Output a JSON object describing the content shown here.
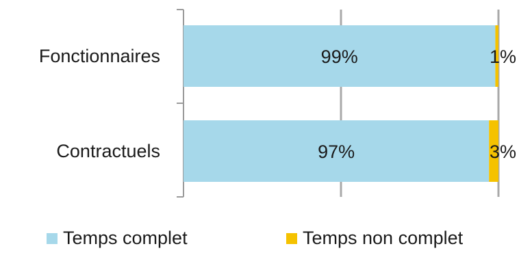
{
  "chart_data": {
    "type": "bar",
    "orientation": "horizontal",
    "stacked": true,
    "percent_stacked": true,
    "categories": [
      "Fonctionnaires",
      "Contractuels"
    ],
    "series": [
      {
        "name": "Temps complet",
        "values": [
          99,
          97
        ],
        "labels": [
          "99%",
          "97%"
        ],
        "color": "#a6d8ea"
      },
      {
        "name": "Temps non complet",
        "values": [
          1,
          3
        ],
        "labels": [
          "1%",
          "3%"
        ],
        "color": "#f5c200"
      }
    ],
    "xlim": [
      0,
      100
    ],
    "grid": true,
    "legend_position": "bottom"
  }
}
